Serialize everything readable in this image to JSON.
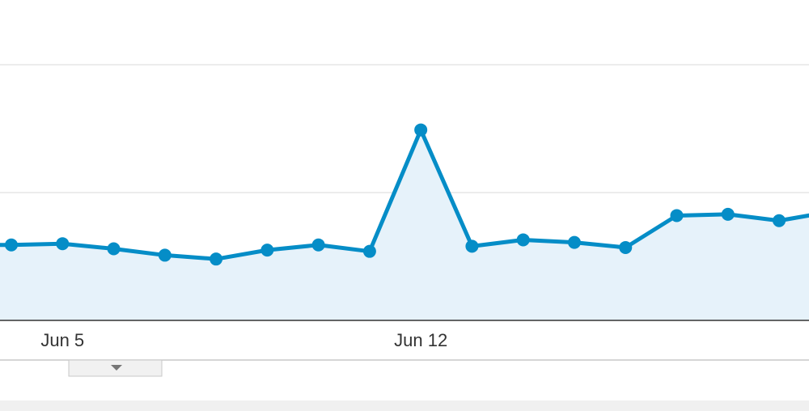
{
  "chart_data": {
    "type": "line",
    "categories": [
      null,
      "Jun 5",
      null,
      null,
      null,
      null,
      null,
      null,
      "Jun 12",
      null,
      null,
      null,
      null,
      null,
      null,
      null,
      null
    ],
    "series": [
      {
        "color": "#058dc7",
        "values": [
          0.59,
          0.6,
          0.56,
          0.51,
          0.48,
          0.55,
          0.59,
          0.54,
          1.49,
          0.58,
          0.63,
          0.61,
          0.57,
          0.82,
          0.83,
          0.78,
          0.85
        ]
      }
    ],
    "ylim": [
      0,
      2.5
    ],
    "yticks": [
      0,
      1,
      2
    ],
    "grid": true
  }
}
